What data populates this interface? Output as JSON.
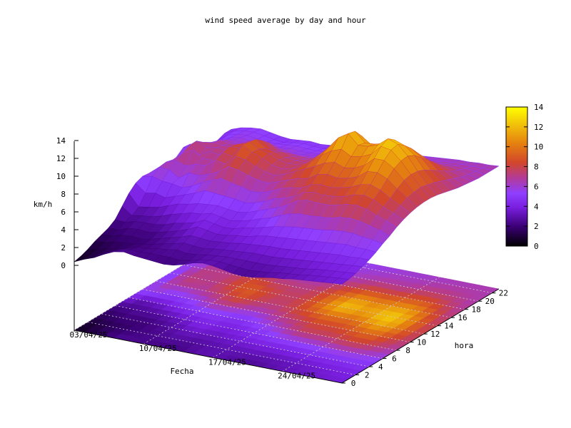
{
  "chart_data": {
    "type": "surface3d",
    "title": "wind speed average by day and hour",
    "xlabel": "Fecha",
    "ylabel": "hora",
    "zlabel": "km/h",
    "x_ticks": [
      "03/04/25",
      "10/04/25",
      "17/04/25",
      "24/04/25"
    ],
    "y_ticks": [
      "0",
      "2",
      "4",
      "6",
      "8",
      "10",
      "12",
      "14",
      "16",
      "18",
      "20",
      "22"
    ],
    "z_ticks": [
      "0",
      "2",
      "4",
      "6",
      "8",
      "10",
      "12",
      "14"
    ],
    "colorbar_ticks": [
      "0",
      "2",
      "4",
      "6",
      "8",
      "10",
      "12",
      "14"
    ],
    "zlim": [
      0,
      14
    ],
    "colorbar_colors": [
      "#000000",
      "#3b0075",
      "#7a1fe0",
      "#8f3fff",
      "#b03aa0",
      "#d2462c",
      "#e5820f",
      "#f2c40a",
      "#ffff00"
    ],
    "grid": true,
    "n_days": 28,
    "n_hours": 24,
    "z": [
      [
        0.4,
        0.6,
        0.9,
        1.3,
        1.6,
        1.9,
        2.4,
        3.4,
        4.4,
        5.1,
        5.4,
        5.3,
        4.8,
        4.4,
        4.7,
        5.3,
        5.9,
        5.8,
        5.0,
        4.6,
        4.3,
        4.4,
        4.7,
        4.7
      ],
      [
        0.9,
        1.0,
        1.1,
        1.4,
        1.7,
        1.9,
        2.3,
        2.6,
        3.1,
        4.2,
        5.6,
        6.2,
        6.3,
        6.1,
        5.9,
        5.6,
        5.4,
        5.2,
        5.2,
        5.0,
        5.0,
        5.2,
        5.2,
        5.1
      ],
      [
        1.3,
        1.4,
        1.4,
        1.7,
        2.0,
        2.3,
        2.6,
        2.8,
        3.3,
        4.4,
        5.3,
        6.1,
        6.7,
        7.1,
        7.5,
        7.5,
        6.9,
        6.4,
        5.9,
        5.6,
        5.6,
        5.5,
        5.4,
        5.3
      ],
      [
        1.9,
        1.8,
        1.6,
        1.8,
        2.1,
        2.4,
        2.7,
        2.9,
        3.5,
        4.1,
        5.2,
        5.4,
        6.3,
        7.6,
        6.6,
        7.0,
        7.1,
        6.9,
        6.5,
        6.0,
        5.8,
        5.6,
        5.5,
        5.4
      ],
      [
        2.4,
        2.2,
        1.9,
        1.9,
        2.0,
        2.3,
        2.7,
        3.2,
        3.9,
        4.5,
        5.0,
        6.2,
        6.7,
        6.9,
        7.2,
        7.2,
        7.0,
        6.8,
        6.3,
        5.9,
        5.6,
        5.4,
        5.3,
        5.2
      ],
      [
        2.6,
        2.4,
        2.2,
        2.1,
        2.2,
        2.5,
        2.9,
        3.6,
        4.3,
        4.9,
        5.4,
        6.1,
        6.8,
        6.9,
        7.1,
        7.2,
        7.0,
        6.7,
        6.3,
        5.9,
        5.6,
        5.3,
        5.1,
        5.0
      ],
      [
        2.4,
        2.3,
        2.3,
        2.3,
        2.5,
        2.8,
        3.3,
        3.9,
        4.5,
        5.3,
        6.0,
        6.5,
        7.6,
        8.0,
        8.2,
        8.0,
        7.7,
        7.2,
        6.6,
        6.0,
        5.6,
        5.3,
        5.0,
        4.9
      ],
      [
        2.3,
        2.4,
        2.5,
        2.6,
        2.8,
        3.1,
        3.5,
        4.2,
        4.8,
        5.8,
        6.5,
        7.0,
        7.4,
        7.8,
        8.3,
        8.4,
        8.2,
        7.7,
        6.9,
        6.1,
        5.6,
        5.4,
        5.2,
        5.0
      ],
      [
        2.2,
        2.4,
        2.6,
        2.8,
        3.1,
        3.5,
        3.8,
        4.3,
        4.9,
        5.7,
        6.9,
        7.8,
        8.5,
        9.3,
        9.2,
        9.0,
        8.4,
        7.7,
        6.8,
        6.1,
        5.7,
        5.5,
        5.3,
        5.1
      ],
      [
        2.1,
        2.4,
        2.8,
        3.1,
        3.5,
        4.0,
        4.3,
        4.6,
        5.0,
        5.6,
        6.6,
        7.6,
        8.3,
        8.7,
        8.6,
        8.2,
        7.5,
        6.8,
        6.2,
        5.8,
        5.6,
        5.4,
        5.2,
        5.0
      ],
      [
        2.2,
        2.3,
        2.6,
        3.0,
        3.4,
        3.8,
        4.1,
        4.4,
        4.8,
        5.5,
        6.4,
        7.2,
        7.8,
        8.2,
        8.3,
        8.0,
        7.6,
        7.0,
        6.4,
        5.9,
        5.6,
        5.4,
        5.2,
        5.1
      ],
      [
        2.5,
        2.5,
        2.7,
        2.9,
        3.3,
        3.6,
        3.9,
        4.2,
        4.7,
        5.3,
        6.1,
        6.9,
        7.4,
        7.7,
        7.8,
        7.6,
        7.3,
        6.9,
        6.4,
        6.0,
        5.7,
        5.5,
        5.3,
        5.2
      ],
      [
        2.9,
        2.8,
        2.9,
        3.1,
        3.4,
        3.7,
        4.0,
        4.4,
        4.9,
        5.5,
        6.2,
        6.8,
        7.2,
        7.5,
        7.6,
        7.5,
        7.2,
        6.9,
        6.5,
        6.1,
        5.8,
        5.6,
        5.4,
        5.3
      ],
      [
        3.1,
        3.0,
        3.0,
        3.2,
        3.5,
        3.9,
        4.3,
        4.7,
        5.3,
        5.9,
        6.6,
        7.2,
        7.6,
        7.7,
        7.7,
        7.5,
        7.3,
        7.0,
        6.6,
        6.3,
        6.0,
        5.8,
        5.6,
        5.4
      ],
      [
        3.0,
        3.0,
        3.1,
        3.3,
        3.7,
        4.0,
        4.5,
        5.1,
        5.7,
        6.4,
        7.1,
        7.6,
        8.1,
        8.3,
        8.3,
        8.2,
        8.0,
        7.6,
        7.1,
        6.6,
        6.2,
        5.9,
        5.7,
        5.5
      ],
      [
        2.8,
        2.9,
        3.1,
        3.4,
        3.8,
        4.3,
        4.8,
        5.4,
        6.1,
        6.7,
        7.4,
        8.0,
        8.6,
        9.0,
        9.2,
        9.1,
        8.7,
        8.2,
        7.5,
        6.9,
        6.4,
        6.1,
        5.8,
        5.6
      ],
      [
        2.6,
        2.8,
        3.1,
        3.5,
        3.9,
        4.5,
        5.1,
        5.9,
        6.6,
        7.1,
        7.6,
        8.2,
        9.1,
        9.9,
        10.3,
        10.1,
        9.6,
        8.9,
        8.0,
        7.2,
        6.6,
        6.2,
        5.9,
        5.7
      ],
      [
        2.5,
        2.7,
        3.1,
        3.5,
        4.0,
        4.6,
        5.3,
        6.3,
        7.3,
        7.8,
        8.2,
        8.9,
        9.7,
        10.6,
        11.6,
        11.3,
        10.4,
        9.4,
        8.4,
        7.5,
        6.8,
        6.3,
        6.0,
        5.8
      ],
      [
        2.6,
        2.8,
        3.1,
        3.5,
        4.0,
        4.7,
        5.5,
        6.5,
        7.6,
        8.0,
        8.4,
        9.1,
        10.0,
        11.0,
        12.3,
        12.1,
        11.1,
        9.9,
        8.7,
        7.7,
        6.9,
        6.4,
        6.1,
        5.9
      ],
      [
        2.8,
        2.9,
        3.2,
        3.6,
        4.1,
        4.8,
        5.6,
        6.5,
        7.5,
        7.9,
        8.3,
        8.9,
        9.6,
        10.4,
        11.2,
        11.0,
        10.3,
        9.4,
        8.4,
        7.5,
        6.8,
        6.4,
        6.1,
        5.9
      ],
      [
        3.0,
        3.1,
        3.3,
        3.7,
        4.2,
        4.9,
        5.7,
        6.6,
        7.5,
        8.0,
        8.5,
        9.1,
        9.8,
        10.6,
        11.3,
        11.1,
        10.4,
        9.5,
        8.5,
        7.6,
        6.9,
        6.5,
        6.2,
        6.0
      ],
      [
        3.1,
        3.2,
        3.4,
        3.8,
        4.3,
        5.0,
        5.8,
        6.7,
        7.7,
        8.2,
        8.8,
        9.5,
        10.3,
        11.1,
        11.7,
        11.4,
        10.7,
        9.7,
        8.7,
        7.8,
        7.1,
        6.6,
        6.3,
        6.1
      ],
      [
        3.3,
        3.3,
        3.5,
        3.9,
        4.4,
        5.1,
        6.0,
        7.0,
        8.0,
        8.6,
        9.3,
        10.3,
        11.3,
        12.2,
        12.6,
        12.0,
        11.0,
        9.9,
        8.9,
        8.0,
        7.3,
        6.8,
        6.4,
        6.2
      ],
      [
        3.4,
        3.5,
        3.7,
        4.0,
        4.5,
        5.2,
        6.1,
        7.1,
        8.1,
        8.8,
        9.5,
        10.4,
        11.3,
        12.0,
        12.2,
        11.6,
        10.8,
        9.8,
        8.8,
        8.0,
        7.3,
        6.8,
        6.5,
        6.3
      ],
      [
        3.5,
        3.6,
        3.8,
        4.1,
        4.6,
        5.3,
        6.1,
        7.0,
        7.9,
        8.5,
        9.1,
        9.9,
        10.6,
        11.0,
        11.1,
        10.7,
        10.0,
        9.3,
        8.5,
        7.8,
        7.2,
        6.8,
        6.5,
        6.3
      ],
      [
        3.6,
        3.7,
        3.9,
        4.2,
        4.6,
        5.2,
        5.9,
        6.7,
        7.4,
        7.9,
        8.4,
        9.0,
        9.5,
        9.7,
        9.6,
        9.3,
        8.8,
        8.3,
        7.8,
        7.3,
        7.0,
        6.7,
        6.5,
        6.4
      ],
      [
        3.7,
        3.8,
        4.0,
        4.3,
        4.7,
        5.2,
        5.8,
        6.4,
        7.0,
        7.4,
        7.8,
        8.2,
        8.4,
        8.5,
        8.3,
        8.1,
        7.8,
        7.5,
        7.2,
        6.9,
        6.7,
        6.6,
        6.5,
        6.4
      ],
      [
        3.8,
        3.9,
        4.1,
        4.4,
        4.7,
        5.1,
        5.6,
        6.0,
        6.5,
        6.9,
        7.2,
        7.4,
        7.5,
        7.5,
        7.4,
        7.2,
        7.0,
        6.8,
        6.7,
        6.6,
        6.5,
        6.5,
        6.5,
        6.5
      ]
    ]
  }
}
